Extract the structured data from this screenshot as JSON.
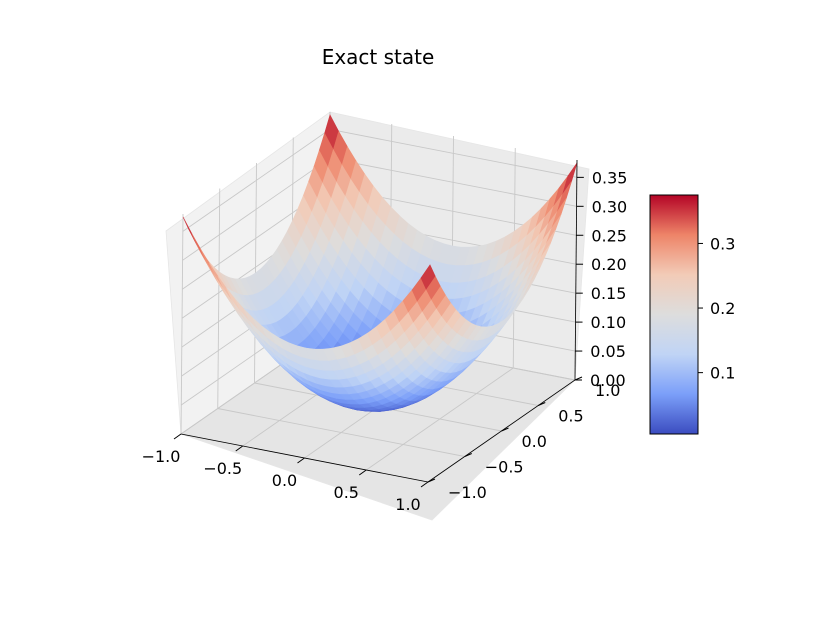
{
  "chart_data": {
    "type": "surface3d",
    "title": "Exact state",
    "colormap": "coolwarm",
    "colormap_colors": [
      "#3b4cc0",
      "#7b9ff9",
      "#c0d4f5",
      "#dddddd",
      "#f2cbb7",
      "#ee8468",
      "#b40426"
    ],
    "x_range": [
      -1.0,
      1.0
    ],
    "y_range": [
      -1.0,
      1.0
    ],
    "z_range": [
      0.0,
      0.38
    ],
    "x_ticks": [
      "−1.0",
      "−0.5",
      "0.0",
      "0.5",
      "1.0"
    ],
    "y_ticks": [
      "−1.0",
      "−0.5",
      "0.0",
      "0.5",
      "1.0"
    ],
    "z_ticks": [
      "0.00",
      "0.05",
      "0.10",
      "0.15",
      "0.20",
      "0.25",
      "0.30",
      "0.35"
    ],
    "colorbar_range": [
      0.005,
      0.375
    ],
    "colorbar_ticks": [
      "0.1",
      "0.2",
      "0.3"
    ],
    "surface_description": "bowl shape, minimum near center, maximum at corners",
    "corner_values": {
      "min": 0.005,
      "max": 0.375
    }
  }
}
